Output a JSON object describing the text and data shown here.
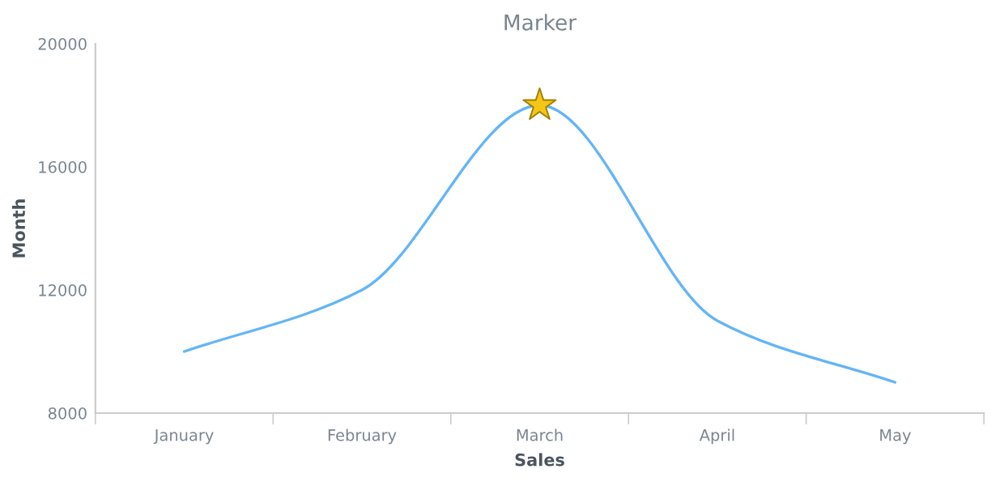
{
  "chart_data": {
    "type": "line",
    "title": "Marker",
    "xlabel": "Sales",
    "ylabel": "Month",
    "categories": [
      "January",
      "February",
      "March",
      "April",
      "May"
    ],
    "series": [
      {
        "color": "#64b5f6",
        "values": [
          10000,
          12000,
          18000,
          11000,
          9000
        ]
      },
      {
        "type": "scatter",
        "x": [
          "March"
        ],
        "color": "#f5c518",
        "marker": "star",
        "values": [
          18000
        ]
      }
    ],
    "ylim": [
      8000,
      20000
    ],
    "yticks": [
      8000,
      12000,
      16000,
      20000
    ],
    "marker": "none"
  }
}
